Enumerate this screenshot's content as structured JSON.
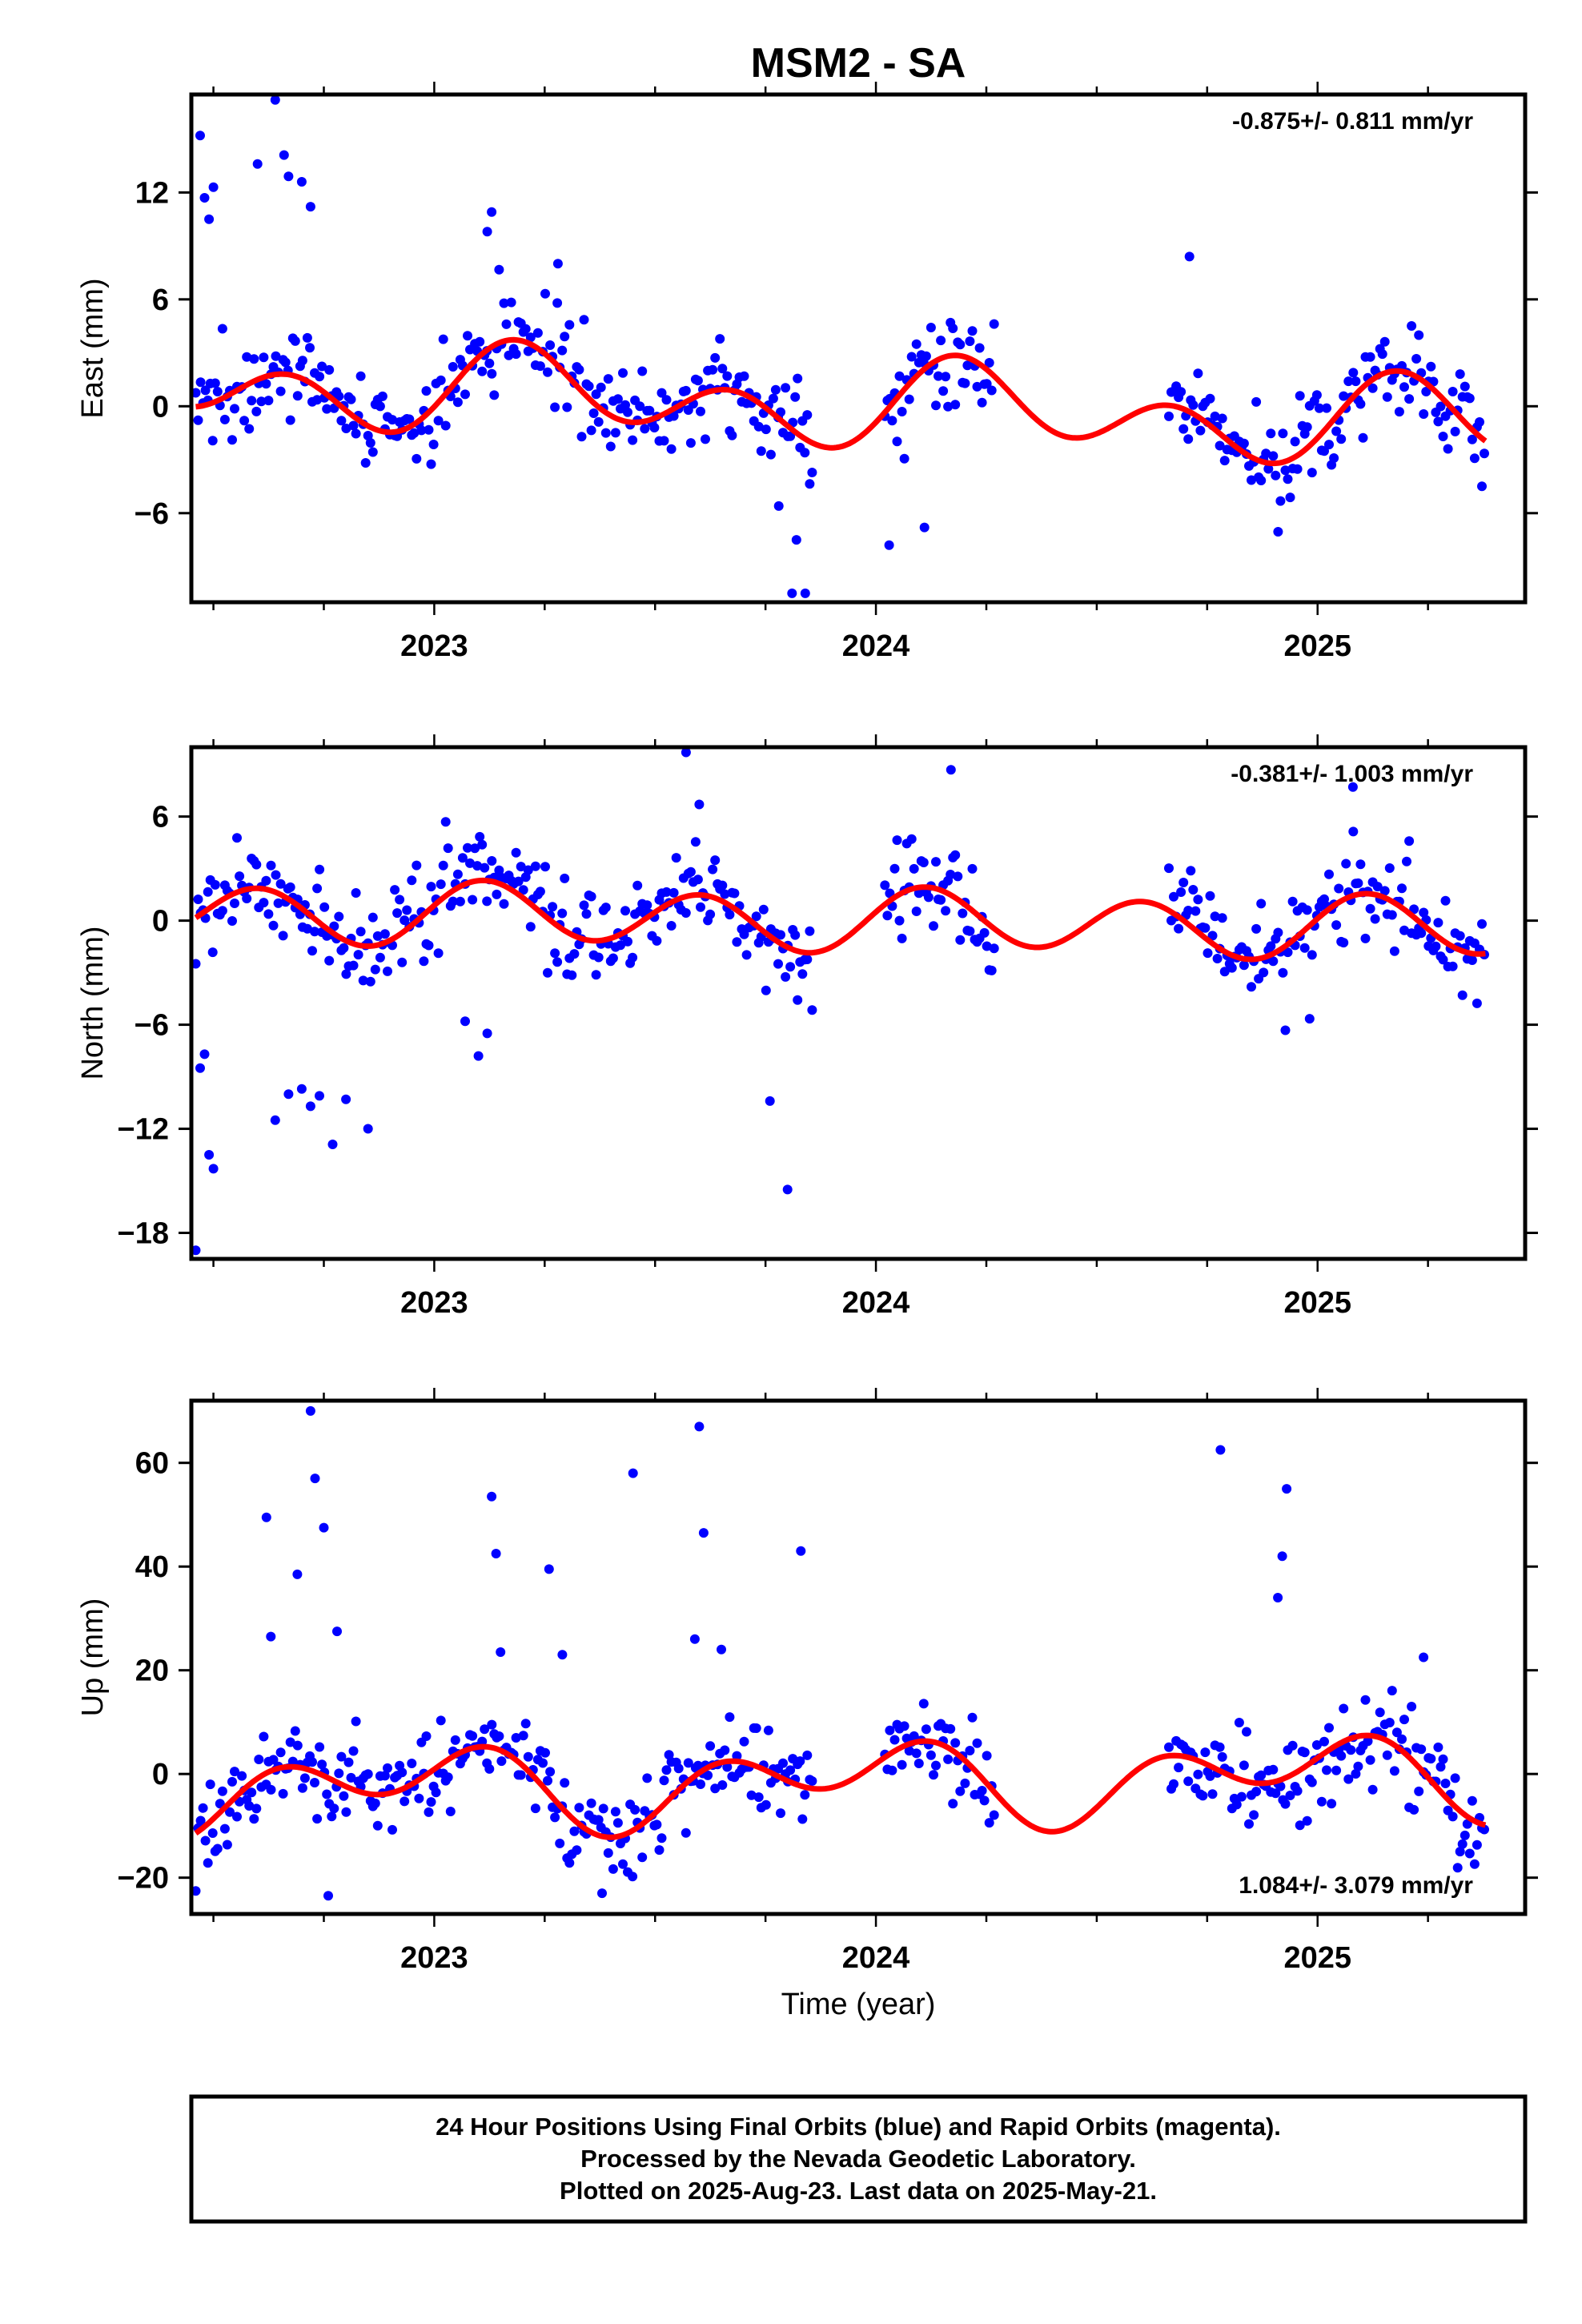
{
  "title": "MSM2 - SA",
  "xlabel": "Time (year)",
  "footer": {
    "line1": "24 Hour Positions Using Final Orbits (blue) and Rapid Orbits (magenta).",
    "line2": "Processed by the Nevada Geodetic Laboratory.",
    "line3": "Plotted on 2025-Aug-23. Last data on 2025-May-21."
  },
  "colors": {
    "points": "#0000ff",
    "model": "#ff0000",
    "frame": "#000000"
  },
  "chart_data": [
    {
      "type": "scatter",
      "ylabel": "East (mm)",
      "rate": "-0.875+/- 0.811 mm/yr",
      "rate_position": "top-right",
      "xlim": [
        2022.45,
        2025.47
      ],
      "ylim": [
        -11,
        17.5
      ],
      "xticks": [
        2023,
        2024,
        2025
      ],
      "yticks": [
        -6,
        0,
        6,
        12
      ],
      "data_span": [
        2022.46,
        2025.38
      ],
      "gap": [
        2024.27,
        2024.66
      ],
      "model": {
        "offset": 0.0,
        "trend": -0.875,
        "annual": {
          "sin": 1.3,
          "cos": 0.1
        },
        "semiannual": {
          "sin": 1.5,
          "cos": -1.0
        }
      },
      "scatter_sigma": 1.4,
      "outliers": [
        [
          2022.47,
          15.2
        ],
        [
          2022.48,
          11.7
        ],
        [
          2022.49,
          10.5
        ],
        [
          2022.5,
          12.3
        ],
        [
          2022.64,
          17.2
        ],
        [
          2022.6,
          13.6
        ],
        [
          2022.66,
          14.1
        ],
        [
          2022.67,
          12.9
        ],
        [
          2022.7,
          12.6
        ],
        [
          2022.72,
          11.2
        ],
        [
          2023.13,
          10.9
        ],
        [
          2023.12,
          9.8
        ],
        [
          2023.28,
          8.0
        ],
        [
          2023.81,
          -10.5
        ],
        [
          2023.84,
          -10.5
        ],
        [
          2023.78,
          -5.6
        ],
        [
          2023.82,
          -7.5
        ],
        [
          2024.03,
          -7.8
        ],
        [
          2024.11,
          -6.8
        ],
        [
          2024.71,
          8.4
        ]
      ]
    },
    {
      "type": "scatter",
      "ylabel": "North (mm)",
      "rate": "-0.381+/- 1.003 mm/yr",
      "rate_position": "top-right",
      "xlim": [
        2022.45,
        2025.47
      ],
      "ylim": [
        -19.5,
        10
      ],
      "xticks": [
        2023,
        2024,
        2025
      ],
      "yticks": [
        -18,
        -12,
        -6,
        0,
        6
      ],
      "data_span": [
        2022.46,
        2025.38
      ],
      "gap": [
        2024.27,
        2024.66
      ],
      "model": {
        "offset": 0.0,
        "trend": -0.381,
        "annual": {
          "sin": 0.4,
          "cos": 0.1
        },
        "semiannual": {
          "sin": 1.6,
          "cos": 0.4
        }
      },
      "scatter_sigma": 1.4,
      "outliers": [
        [
          2022.46,
          -19.0
        ],
        [
          2022.47,
          -8.5
        ],
        [
          2022.48,
          -7.7
        ],
        [
          2022.49,
          -13.5
        ],
        [
          2022.5,
          -14.3
        ],
        [
          2022.64,
          -11.5
        ],
        [
          2022.67,
          -10.0
        ],
        [
          2022.7,
          -9.7
        ],
        [
          2022.72,
          -10.7
        ],
        [
          2022.74,
          -10.1
        ],
        [
          2022.77,
          -12.9
        ],
        [
          2022.8,
          -10.3
        ],
        [
          2022.85,
          -12.0
        ],
        [
          2023.07,
          -5.8
        ],
        [
          2023.1,
          -7.8
        ],
        [
          2023.12,
          -6.5
        ],
        [
          2023.57,
          9.7
        ],
        [
          2023.6,
          6.7
        ],
        [
          2023.76,
          -10.4
        ],
        [
          2023.8,
          -15.5
        ],
        [
          2024.17,
          8.7
        ],
        [
          2025.08,
          7.7
        ]
      ]
    },
    {
      "type": "scatter",
      "ylabel": "Up (mm)",
      "rate": "1.084+/- 3.079 mm/yr",
      "rate_position": "bottom-right",
      "xlim": [
        2022.45,
        2025.47
      ],
      "ylim": [
        -27,
        72
      ],
      "xticks": [
        2023,
        2024,
        2025
      ],
      "yticks": [
        -20,
        0,
        20,
        40,
        60
      ],
      "data_span": [
        2022.46,
        2025.38
      ],
      "gap": [
        2024.27,
        2024.66
      ],
      "model": {
        "offset": -1.5,
        "trend": 1.084,
        "annual": {
          "sin": -1.5,
          "cos": 4.5
        },
        "semiannual": {
          "sin": 5.5,
          "cos": -1.0
        }
      },
      "scatter_sigma": 4.5,
      "outliers": [
        [
          2022.72,
          70.0
        ],
        [
          2022.73,
          57.0
        ],
        [
          2022.75,
          47.5
        ],
        [
          2022.62,
          49.5
        ],
        [
          2022.69,
          38.5
        ],
        [
          2022.78,
          27.5
        ],
        [
          2022.63,
          26.5
        ],
        [
          2023.13,
          53.5
        ],
        [
          2023.14,
          42.5
        ],
        [
          2023.26,
          39.5
        ],
        [
          2023.15,
          23.5
        ],
        [
          2023.29,
          23.0
        ],
        [
          2023.45,
          58.0
        ],
        [
          2023.6,
          67.0
        ],
        [
          2023.61,
          46.5
        ],
        [
          2023.83,
          43.0
        ],
        [
          2023.59,
          26.0
        ],
        [
          2023.65,
          24.0
        ],
        [
          2024.78,
          62.5
        ],
        [
          2024.93,
          55.0
        ],
        [
          2024.92,
          42.0
        ],
        [
          2024.91,
          34.0
        ],
        [
          2025.24,
          22.5
        ],
        [
          2022.76,
          -23.5
        ],
        [
          2023.38,
          -23.0
        ]
      ]
    }
  ]
}
